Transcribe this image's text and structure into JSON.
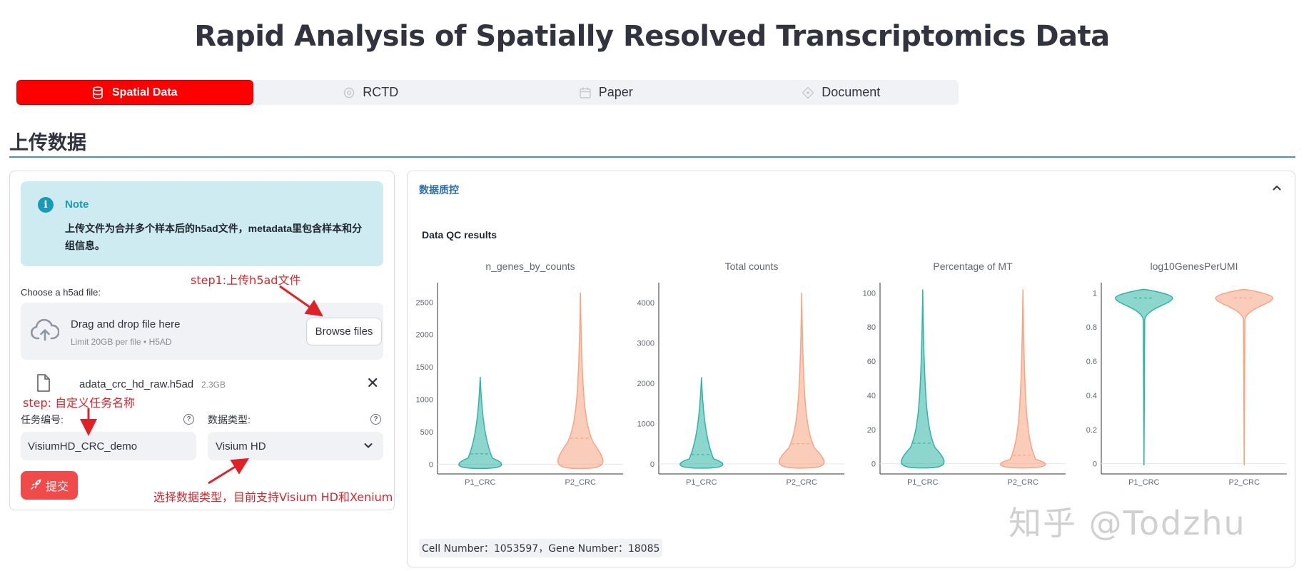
{
  "page": {
    "title": "Rapid Analysis of Spatially Resolved Transcriptomics Data"
  },
  "tabs": [
    {
      "label": "Spatial Data",
      "icon": "database-icon"
    },
    {
      "label": "RCTD",
      "icon": "gear-icon"
    },
    {
      "label": "Paper",
      "icon": "calendar-icon"
    },
    {
      "label": "Document",
      "icon": "diamond-icon"
    }
  ],
  "section": {
    "title": "上传数据"
  },
  "note": {
    "title": "Note",
    "text": "上传文件为合并多个样本后的h5ad文件，metadata里包含样本和分组信息。"
  },
  "upload": {
    "label": "Choose a h5ad file:",
    "drop_title": "Drag and drop file here",
    "drop_sub": "Limit 20GB per file • H5AD",
    "browse": "Browse files",
    "file_name": "adata_crc_hd_raw.h5ad",
    "file_size": "2.3GB"
  },
  "form": {
    "task_label": "任务编号:",
    "task_value": "VisiumHD_CRC_demo",
    "type_label": "数据类型:",
    "type_value": "Visium HD",
    "submit": "提交"
  },
  "annotations": {
    "step1": "step1:上传h5ad文件",
    "step2": "step: 自定义任务名称",
    "step3": "选择数据类型，目前支持Visium HD和Xenium"
  },
  "expander": {
    "title": "数据质控"
  },
  "qc": {
    "title": "Data QC results",
    "footer": "Cell Number：1053597，Gene Number：18085"
  },
  "watermark": "知乎 @Todzhu",
  "colors": {
    "p1": "#2fb5a6",
    "p2": "#f6a483",
    "tab_active": "#ff0000",
    "accent": "#1a9bb5"
  },
  "chart_data": [
    {
      "type": "violin",
      "title": "n_genes_by_counts",
      "categories": [
        "P1_CRC",
        "P2_CRC"
      ],
      "y_ticks": [
        0,
        500,
        1000,
        1500,
        2000,
        2500
      ],
      "ylim": [
        -150,
        2800
      ],
      "series": [
        {
          "name": "P1_CRC",
          "max": 1350,
          "median": 160
        },
        {
          "name": "P2_CRC",
          "max": 2650,
          "median": 400
        }
      ]
    },
    {
      "type": "violin",
      "title": "Total counts",
      "categories": [
        "P1_CRC",
        "P2_CRC"
      ],
      "y_ticks": [
        0,
        1000,
        2000,
        3000,
        4000
      ],
      "ylim": [
        -250,
        4500
      ],
      "series": [
        {
          "name": "P1_CRC",
          "max": 2150,
          "median": 230
        },
        {
          "name": "P2_CRC",
          "max": 4250,
          "median": 500
        }
      ]
    },
    {
      "type": "violin",
      "title": "Percentage of MT",
      "categories": [
        "P1_CRC",
        "P2_CRC"
      ],
      "y_ticks": [
        0,
        20,
        40,
        60,
        80,
        100
      ],
      "ylim": [
        -6,
        106
      ],
      "series": [
        {
          "name": "P1_CRC",
          "max": 102,
          "median": 12
        },
        {
          "name": "P2_CRC",
          "max": 102,
          "median": 5
        }
      ]
    },
    {
      "type": "violin",
      "title": "log10GenesPerUMI",
      "categories": [
        "P1_CRC",
        "P2_CRC"
      ],
      "y_ticks": [
        0,
        0.2,
        0.4,
        0.6,
        0.8,
        1
      ],
      "ylim": [
        -0.06,
        1.06
      ],
      "series": [
        {
          "name": "P1_CRC",
          "min": -0.01,
          "median": 0.97
        },
        {
          "name": "P2_CRC",
          "min": -0.01,
          "median": 0.97
        }
      ]
    }
  ]
}
